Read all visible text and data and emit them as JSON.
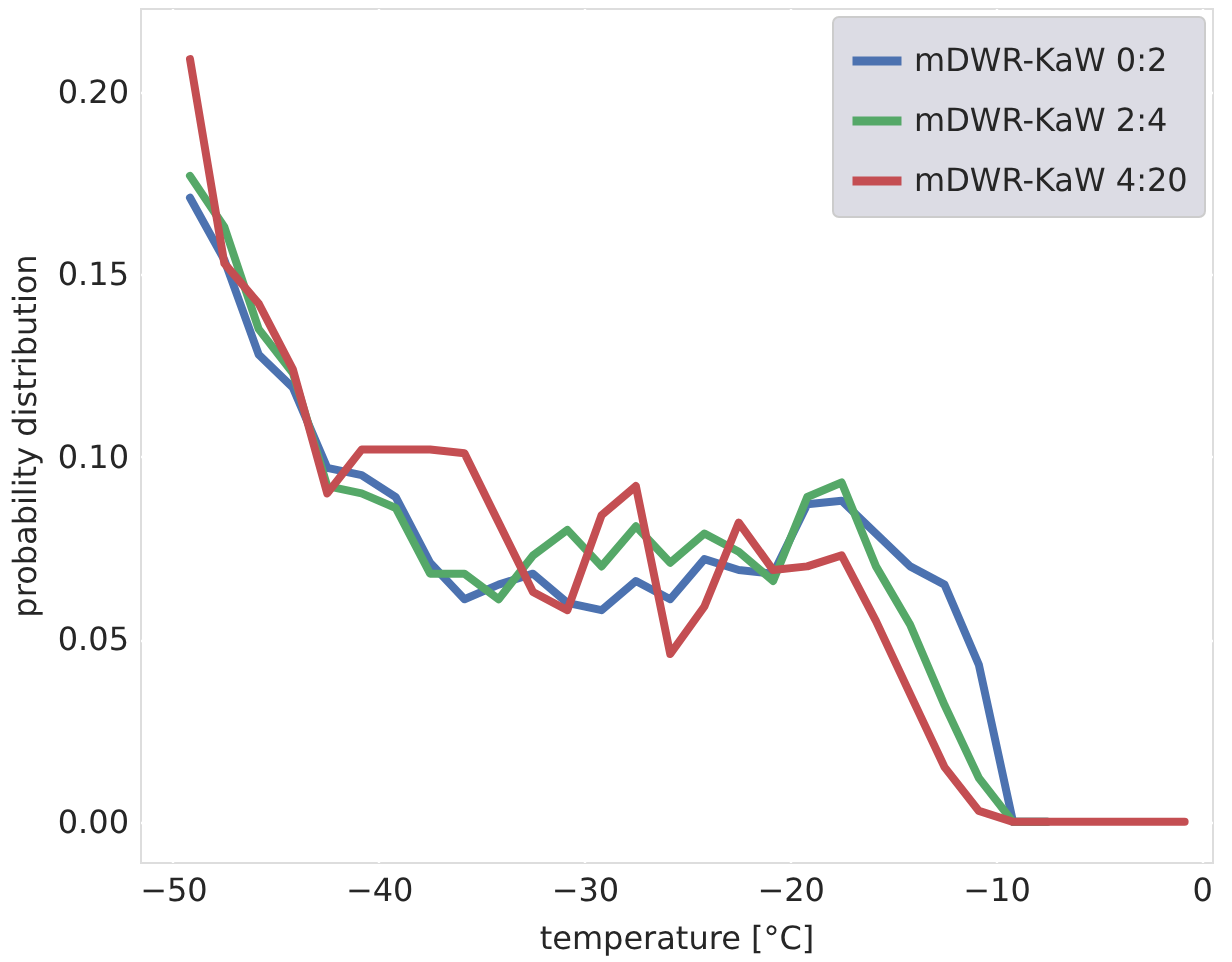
{
  "chart_data": {
    "type": "line",
    "xlabel": "temperature [°C]",
    "ylabel": "probability distribution",
    "x": [
      -49.17,
      -47.5,
      -45.83,
      -44.17,
      -42.5,
      -40.83,
      -39.17,
      -37.5,
      -35.83,
      -34.17,
      -32.5,
      -30.83,
      -29.17,
      -27.5,
      -25.83,
      -24.17,
      -22.5,
      -20.83,
      -19.17,
      -17.5,
      -15.83,
      -14.17,
      -12.5,
      -10.83,
      -9.17,
      -7.5,
      -5.83,
      -4.17,
      -2.5,
      -0.83
    ],
    "series": [
      {
        "name": "mDWR-KaW 0:2",
        "color": "#4c72b0",
        "values": [
          0.171,
          0.154,
          0.128,
          0.119,
          0.097,
          0.095,
          0.089,
          0.071,
          0.061,
          0.065,
          0.068,
          0.06,
          0.058,
          0.066,
          0.061,
          0.072,
          0.069,
          0.068,
          0.087,
          0.088,
          0.079,
          0.07,
          0.065,
          0.043,
          0,
          0,
          null,
          null,
          null,
          null
        ]
      },
      {
        "name": "mDWR-KaW 2:4",
        "color": "#55a868",
        "values": [
          0.177,
          0.163,
          0.135,
          0.123,
          0.092,
          0.09,
          0.086,
          0.068,
          0.068,
          0.061,
          0.073,
          0.08,
          0.07,
          0.081,
          0.071,
          0.079,
          0.074,
          0.066,
          0.089,
          0.093,
          0.07,
          0.054,
          0.032,
          0.012,
          0,
          0,
          null,
          null,
          null,
          null
        ]
      },
      {
        "name": "mDWR-KaW 4:20",
        "color": "#c44e52",
        "values": [
          0.209,
          0.153,
          0.142,
          0.124,
          0.09,
          0.102,
          0.102,
          0.102,
          0.101,
          0.082,
          0.063,
          0.058,
          0.084,
          0.092,
          0.046,
          0.059,
          0.082,
          0.069,
          0.07,
          0.073,
          0.055,
          0.035,
          0.015,
          0.003,
          0,
          0,
          0,
          0,
          0,
          0
        ]
      }
    ],
    "xlim": [
      -51.6,
      0.5
    ],
    "ylim": [
      -0.011,
      0.223
    ],
    "xticks": [
      -50,
      -40,
      -30,
      -20,
      -10,
      0
    ],
    "yticks": [
      {
        "value": 0,
        "label": "0.00"
      },
      {
        "value": 0.05,
        "label": "0.05"
      },
      {
        "value": 0.1,
        "label": "0.10"
      },
      {
        "value": 0.15,
        "label": "0.15"
      },
      {
        "value": 0.2,
        "label": "0.20"
      }
    ],
    "grid": true,
    "legend": "top right",
    "marker": "none",
    "line_style": "solid"
  }
}
